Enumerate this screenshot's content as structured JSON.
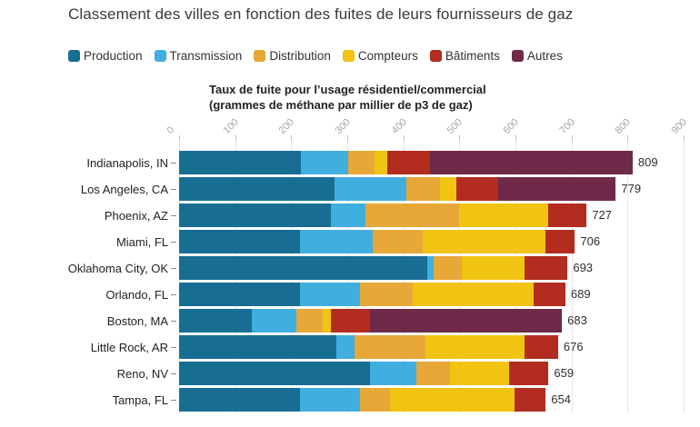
{
  "title": "Classement des villes en fonction des fuites de leurs fournisseurs de gaz",
  "axis_title": {
    "line1": "Taux de fuite pour l’usage résidentiel/commercial",
    "line2": "(grammes de méthane par millier de p3 de gaz)"
  },
  "legend": [
    {
      "label": "Production",
      "color": "#186d92"
    },
    {
      "label": "Transmission",
      "color": "#41aee0"
    },
    {
      "label": "Distribution",
      "color": "#e7a838"
    },
    {
      "label": "Compteurs",
      "color": "#f0c410"
    },
    {
      "label": "Bâtiments",
      "color": "#b22c20"
    },
    {
      "label": "Autres",
      "color": "#6e2a48"
    }
  ],
  "chart_data": {
    "type": "bar",
    "orientation": "horizontal",
    "stacked": true,
    "grid": true,
    "legend_position": "top",
    "xlim": [
      0,
      900
    ],
    "x_ticks": [
      0,
      100,
      200,
      300,
      400,
      500,
      600,
      700,
      800,
      900
    ],
    "series_names": [
      "Production",
      "Transmission",
      "Distribution",
      "Compteurs",
      "Bâtiments",
      "Autres"
    ],
    "series_colors": [
      "#186d92",
      "#41aee0",
      "#e7a838",
      "#f0c410",
      "#b22c20",
      "#6e2a48"
    ],
    "rows": [
      {
        "city": "Indianapolis, IN",
        "total": 809,
        "values": [
          218,
          84,
          46,
          24,
          75,
          362
        ]
      },
      {
        "city": "Los Angeles, CA",
        "total": 779,
        "values": [
          278,
          128,
          59,
          29,
          75,
          210
        ]
      },
      {
        "city": "Phoenix, AZ",
        "total": 727,
        "values": [
          271,
          61,
          168,
          158,
          69,
          0
        ]
      },
      {
        "city": "Miami, FL",
        "total": 706,
        "values": [
          216,
          129,
          89,
          220,
          52,
          0
        ]
      },
      {
        "city": "Oklahoma City, OK",
        "total": 693,
        "values": [
          443,
          11,
          51,
          112,
          76,
          0
        ]
      },
      {
        "city": "Orlando, FL",
        "total": 689,
        "values": [
          216,
          106,
          94,
          217,
          56,
          0
        ]
      },
      {
        "city": "Boston, MA",
        "total": 683,
        "values": [
          130,
          80,
          46,
          15,
          70,
          342
        ]
      },
      {
        "city": "Little Rock, AR",
        "total": 676,
        "values": [
          281,
          32,
          126,
          178,
          59,
          0
        ]
      },
      {
        "city": "Reno, NV",
        "total": 659,
        "values": [
          340,
          84,
          60,
          105,
          70,
          0
        ]
      },
      {
        "city": "Tampa, FL",
        "total": 654,
        "values": [
          215,
          107,
          54,
          223,
          55,
          0
        ]
      }
    ]
  }
}
